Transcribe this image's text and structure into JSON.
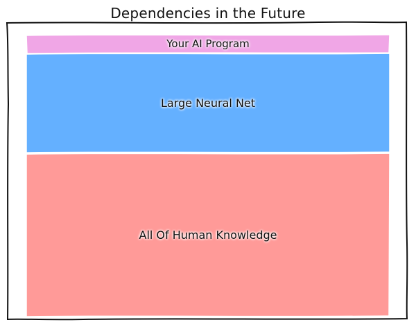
{
  "title": "Dependencies in the Future",
  "layers": [
    {
      "label": "Your AI Program",
      "color": "#f0a6e6"
    },
    {
      "label": "Large Neural Net",
      "color": "#64b0ff"
    },
    {
      "label": "All Of Human Knowledge",
      "color": "#ff9a98"
    }
  ]
}
